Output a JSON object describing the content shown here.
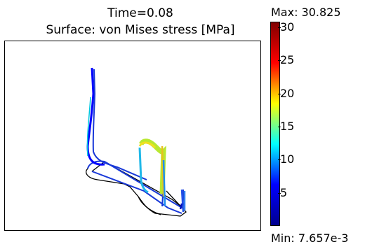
{
  "plot": {
    "title_line1": "Time=0.08",
    "title_line2": "Surface: von Mises stress [MPa]"
  },
  "colorbar": {
    "max_label": "Max: 30.825",
    "min_label": "Min: 7.657e-3",
    "ticks": [
      "30",
      "25",
      "20",
      "15",
      "10",
      "5"
    ],
    "colormap": [
      "#00008f",
      "#0000ff",
      "#00ffff",
      "#ffff00",
      "#ff0000",
      "#800000"
    ]
  }
}
